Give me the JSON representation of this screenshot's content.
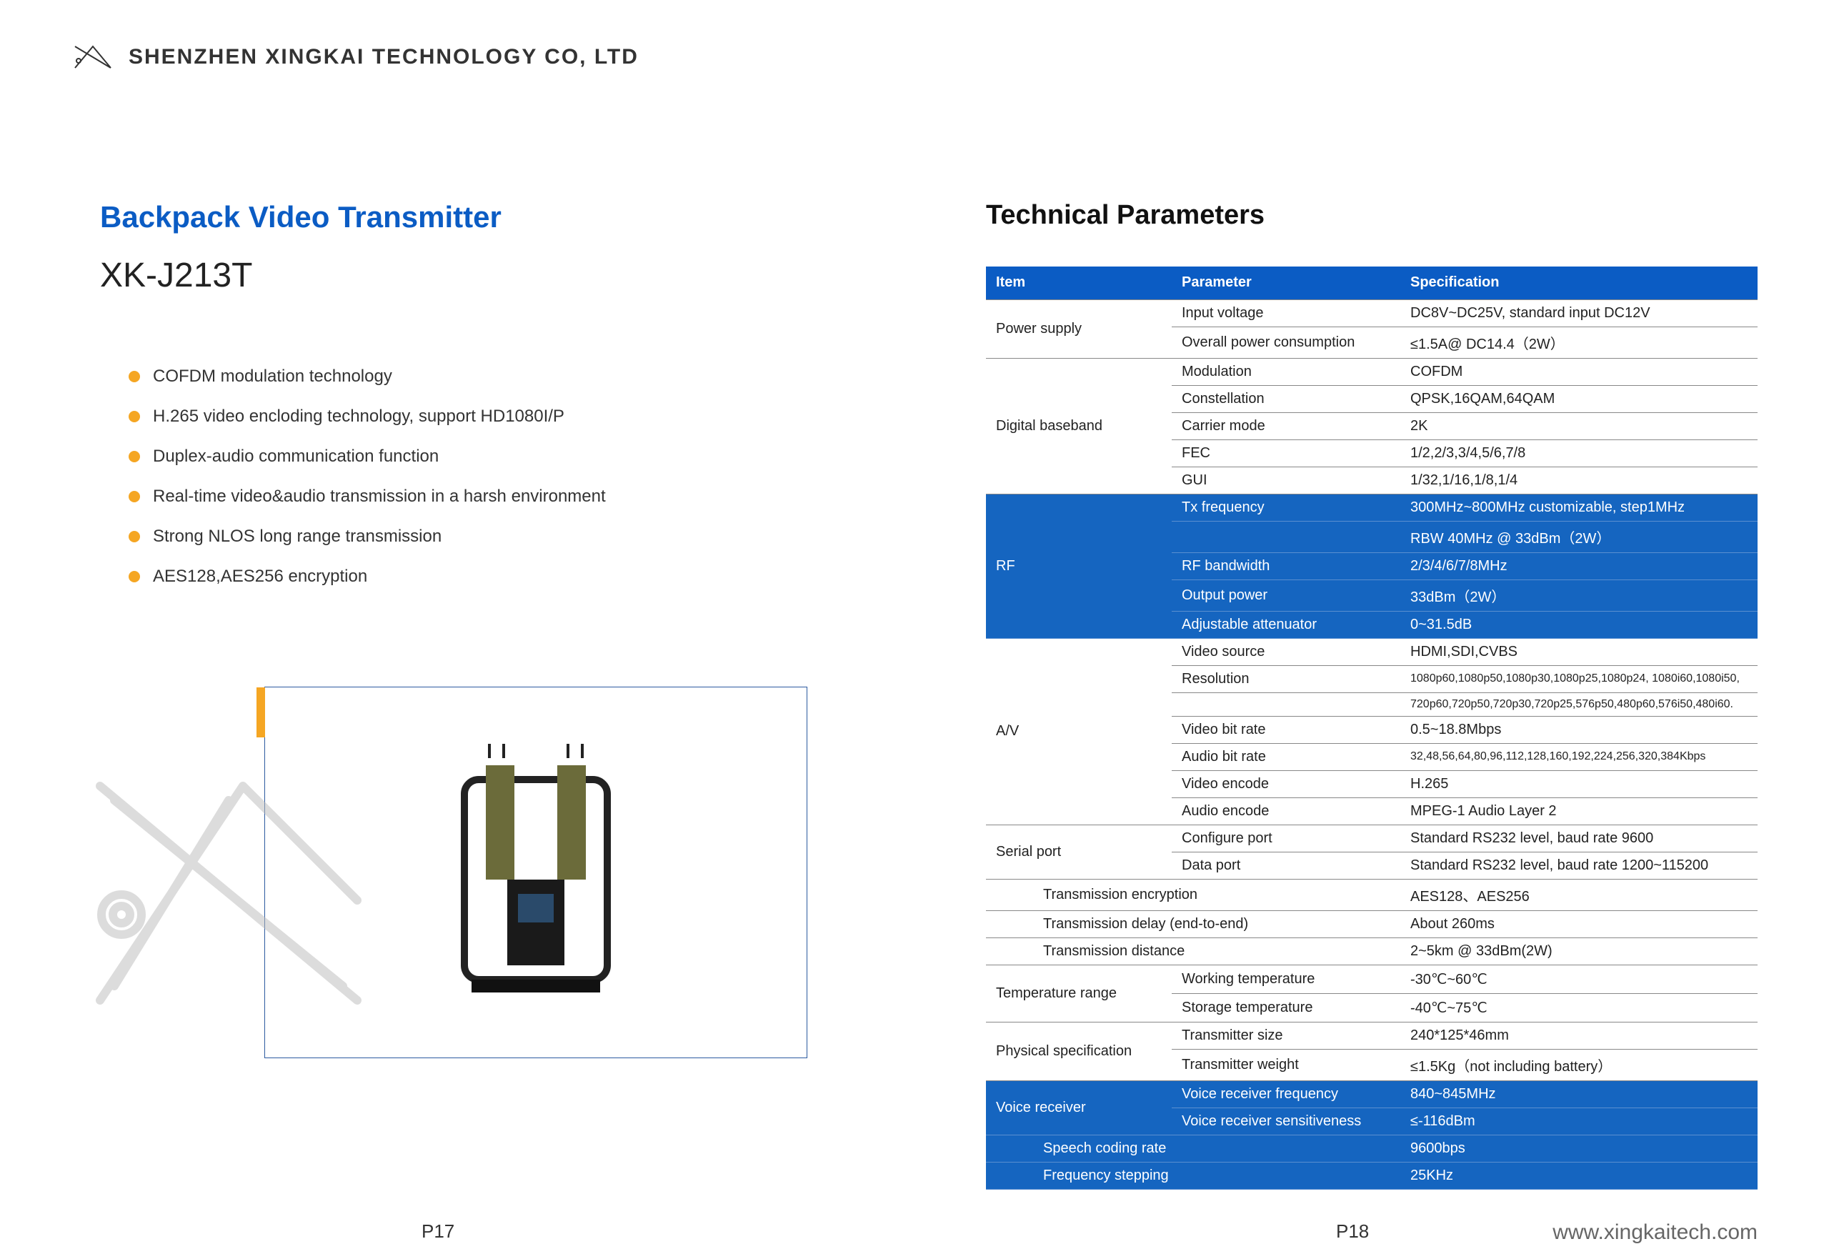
{
  "company": "SHENZHEN XINGKAI TECHNOLOGY CO, LTD",
  "product_title": "Backpack Video Transmitter",
  "model": "XK-J213T",
  "features": [
    "COFDM modulation technology",
    "H.265 video encloding technology, support HD1080I/P",
    "Duplex-audio communication function",
    "Real-time video&audio transmission in a harsh environment",
    "Strong NLOS long range transmission",
    "AES128,AES256 encryption"
  ],
  "tech_title": "Technical Parameters",
  "table": {
    "headers": [
      "Item",
      "Parameter",
      "Specification"
    ],
    "rows": [
      {
        "item": "Power supply",
        "rowspan": 2,
        "param": "Input voltage",
        "spec": "DC8V~DC25V, standard input DC12V"
      },
      {
        "param": "Overall power consumption",
        "spec": "≤1.5A@ DC14.4（2W）"
      },
      {
        "item": "Digital baseband",
        "rowspan": 5,
        "param": "Modulation",
        "spec": "COFDM"
      },
      {
        "param": "Constellation",
        "spec": "QPSK,16QAM,64QAM"
      },
      {
        "param": "Carrier mode",
        "spec": "2K"
      },
      {
        "param": "FEC",
        "spec": "1/2,2/3,3/4,5/6,7/8"
      },
      {
        "param": "GUI",
        "spec": "1/32,1/16,1/8,1/4"
      },
      {
        "item": "RF",
        "rowspan": 5,
        "blue": true,
        "param": "Tx frequency",
        "spec": "300MHz~800MHz customizable, step1MHz"
      },
      {
        "blue": true,
        "param": "",
        "spec": "RBW 40MHz @ 33dBm（2W）"
      },
      {
        "blue": true,
        "param": "RF bandwidth",
        "spec": "2/3/4/6/7/8MHz"
      },
      {
        "blue": true,
        "param": "Output power",
        "spec": "33dBm（2W）"
      },
      {
        "blue": true,
        "param": "Adjustable attenuator",
        "spec": "0~31.5dB"
      },
      {
        "item": "A/V",
        "rowspan": 7,
        "param": "Video source",
        "spec": "HDMI,SDI,CVBS"
      },
      {
        "param": "Resolution",
        "spec": "1080p60,1080p50,1080p30,1080p25,1080p24, 1080i60,1080i50,",
        "small": true
      },
      {
        "param": "",
        "spec": "720p60,720p50,720p30,720p25,576p50,480p60,576i50,480i60.",
        "small": true
      },
      {
        "param": "Video bit rate",
        "spec": "0.5~18.8Mbps"
      },
      {
        "param": "Audio bit rate",
        "spec": "32,48,56,64,80,96,112,128,160,192,224,256,320,384Kbps",
        "small": true
      },
      {
        "param": "Video encode",
        "spec": "H.265"
      },
      {
        "param": "Audio encode",
        "spec": "MPEG-1 Audio Layer 2"
      },
      {
        "item": "Serial port",
        "rowspan": 2,
        "param": "Configure port",
        "spec": "Standard RS232 level, baud rate 9600"
      },
      {
        "param": "Data port",
        "spec": "Standard RS232 level, baud rate 1200~115200"
      },
      {
        "full": true,
        "param": "Transmission encryption",
        "spec": "AES128、AES256"
      },
      {
        "full": true,
        "param": "Transmission delay (end-to-end)",
        "spec": "About 260ms"
      },
      {
        "full": true,
        "param": "Transmission distance",
        "spec": "2~5km @ 33dBm(2W)"
      },
      {
        "item": "Temperature range",
        "rowspan": 2,
        "param": "Working temperature",
        "spec": "-30℃~60℃"
      },
      {
        "param": "Storage temperature",
        "spec": "-40℃~75℃"
      },
      {
        "item": "Physical specification",
        "rowspan": 2,
        "param": "Transmitter size",
        "spec": "240*125*46mm"
      },
      {
        "param": "Transmitter weight",
        "spec": "≤1.5Kg（not including battery）"
      },
      {
        "item": "Voice receiver",
        "rowspan": 2,
        "blue": true,
        "param": "Voice receiver frequency",
        "spec": "840~845MHz"
      },
      {
        "blue": true,
        "param": "Voice receiver sensitiveness",
        "spec": "≤-116dBm"
      },
      {
        "full": true,
        "blue": true,
        "param": "Speech coding rate",
        "spec": "9600bps"
      },
      {
        "full": true,
        "blue": true,
        "param": "Frequency stepping",
        "spec": "25KHz"
      }
    ]
  },
  "page_left": "P17",
  "page_right": "P18",
  "website": "www.xingkaitech.com",
  "colors": {
    "blue": "#0b5cc4",
    "blue_row": "#1565c0",
    "orange": "#f5a623"
  }
}
